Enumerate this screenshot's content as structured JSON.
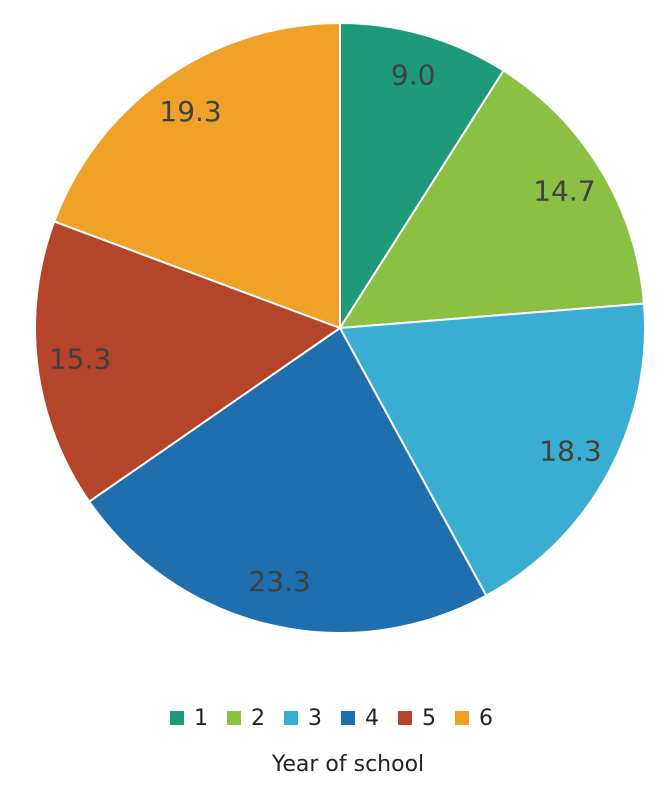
{
  "chart_data": {
    "type": "pie",
    "categories": [
      "1",
      "2",
      "3",
      "4",
      "5",
      "6"
    ],
    "values": [
      9.0,
      14.7,
      18.3,
      23.3,
      15.3,
      19.3
    ],
    "value_labels": [
      "9.0",
      "14.7",
      "18.3",
      "23.3",
      "15.3",
      "19.3"
    ],
    "colors": [
      "#1e9a7a",
      "#8cc043",
      "#3aaed2",
      "#1f6fae",
      "#b5452a",
      "#f0a128"
    ],
    "legend_title": "Year of school",
    "legend": "bottom"
  }
}
